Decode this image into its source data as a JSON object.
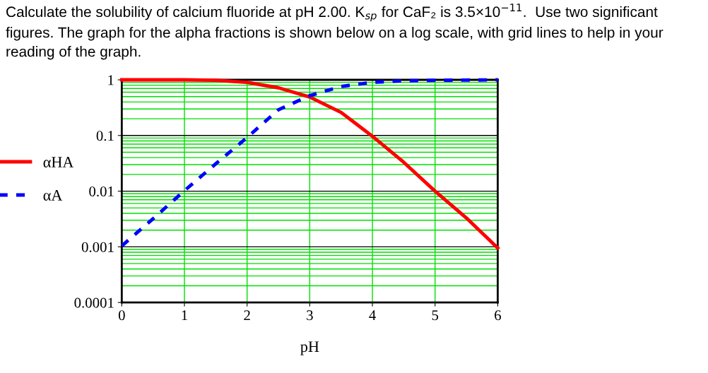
{
  "chart_data": {
    "type": "line",
    "title": "Calculate the solubility of calcium fluoride at pH 2.00. K$_{sp}$ for CaF₂ is 3.5×10$^{−11}$.  Use two significant figures. The graph for the alpha fractions is shown below on a log scale, with grid lines to help in your reading of the graph.",
    "xlabel": "pH",
    "x": [
      0,
      0.5,
      1,
      1.5,
      2,
      2.5,
      3,
      3.5,
      4,
      4.5,
      5,
      5.5,
      6
    ],
    "series": [
      {
        "name": "αHA",
        "color": "#ff0000",
        "line_style": "solid",
        "values": [
          1,
          1,
          1,
          0.98,
          0.9,
          0.72,
          0.49,
          0.26,
          0.097,
          0.033,
          0.01,
          0.0033,
          0.00095
        ]
      },
      {
        "name": "αA",
        "color": "#0000ff",
        "line_style": "dashed",
        "values": [
          0.00104,
          0.0032,
          0.0102,
          0.031,
          0.092,
          0.29,
          0.52,
          0.76,
          0.9,
          0.96,
          0.98,
          0.99,
          1
        ]
      }
    ],
    "log": "y",
    "xlim": [
      0,
      6
    ],
    "xticks": [
      0,
      1,
      2,
      3,
      4,
      5,
      6
    ],
    "ylim": [
      0.0001,
      1
    ],
    "yticks": [
      0.0001,
      0.001,
      0.01,
      0.1,
      1
    ],
    "grid": true,
    "legend": "left",
    "marker": "none"
  }
}
